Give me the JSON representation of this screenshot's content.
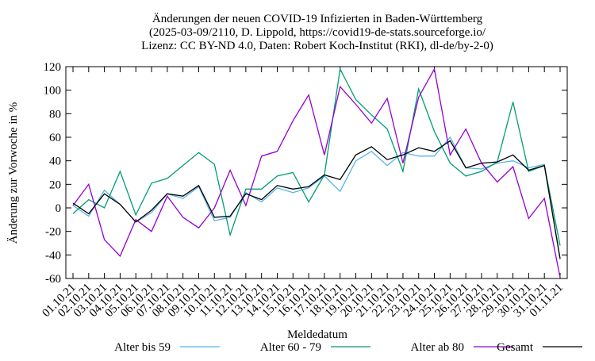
{
  "chart_data": {
    "type": "line",
    "title": [
      "Änderungen der neuen COVID-19 Infizierten in Baden-Württemberg",
      "(2025-03-09/2110, D. Lippold, https://covid19-de-stats.sourceforge.io/",
      "Lizenz: CC BY-ND 4.0, Daten: Robert Koch-Institut (RKI), dl-de/by-2-0)"
    ],
    "xlabel": "Meldedatum",
    "ylabel": "Änderung zur Vorwoche in %",
    "categories": [
      "01.10.21",
      "02.10.21",
      "03.10.21",
      "04.10.21",
      "05.10.21",
      "06.10.21",
      "07.10.21",
      "08.10.21",
      "09.10.21",
      "10.10.21",
      "11.10.21",
      "12.10.21",
      "13.10.21",
      "14.10.21",
      "15.10.21",
      "16.10.21",
      "17.10.21",
      "18.10.21",
      "19.10.21",
      "20.10.21",
      "21.10.21",
      "22.10.21",
      "23.10.21",
      "24.10.21",
      "25.10.21",
      "26.10.21",
      "27.10.21",
      "28.10.21",
      "29.10.21",
      "30.10.21",
      "31.10.21",
      "01.11.21"
    ],
    "series": [
      {
        "name": "Alter bis 59",
        "color": "#56b4e9",
        "values": [
          2,
          -7,
          15,
          3,
          -12,
          -4,
          12,
          8,
          18,
          -11,
          -8,
          13,
          5,
          17,
          13,
          17,
          27,
          14,
          40,
          48,
          36,
          47,
          44,
          44,
          60,
          34,
          33,
          38,
          40,
          34,
          37,
          -44
        ]
      },
      {
        "name": "Alter 60 - 79",
        "color": "#009e73",
        "values": [
          -5,
          7,
          0,
          31,
          -6,
          21,
          25,
          36,
          47,
          37,
          -23,
          16,
          16,
          27,
          30,
          5,
          28,
          118,
          92,
          79,
          67,
          31,
          101,
          65,
          38,
          27,
          31,
          39,
          90,
          31,
          36,
          -32
        ]
      },
      {
        "name": "Alter ab 80",
        "color": "#9400d3",
        "values": [
          2,
          20,
          -27,
          -41,
          -10,
          -20,
          10,
          -8,
          -17,
          0,
          32,
          2,
          44,
          48,
          74,
          96,
          45,
          103,
          88,
          72,
          93,
          38,
          94,
          118,
          45,
          67,
          38,
          22,
          35,
          -9,
          8,
          -59
        ]
      },
      {
        "name": "Gesamt",
        "color": "#000000",
        "values": [
          4,
          -5,
          12,
          3,
          -12,
          -2,
          12,
          10,
          19,
          -8,
          -7,
          12,
          7,
          19,
          16,
          18,
          28,
          24,
          45,
          52,
          41,
          45,
          51,
          48,
          57,
          34,
          38,
          39,
          45,
          32,
          36,
          -43
        ]
      }
    ],
    "ylim": [
      -60,
      120
    ],
    "yticks": [
      -60,
      -40,
      -20,
      0,
      20,
      40,
      60,
      80,
      100,
      120
    ]
  }
}
